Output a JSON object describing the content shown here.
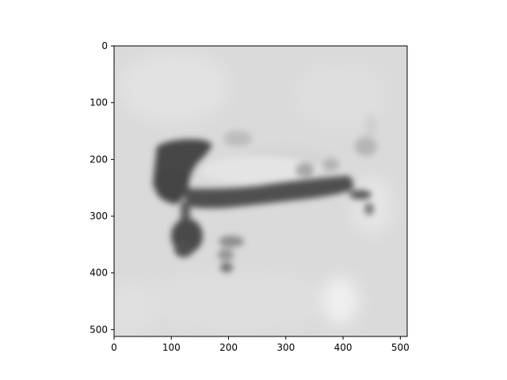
{
  "figure": {
    "background": "#ffffff",
    "colormap": "gray"
  },
  "axes": {
    "x_ticks": [
      0,
      100,
      200,
      300,
      400,
      500
    ],
    "y_ticks": [
      0,
      100,
      200,
      300,
      400,
      500
    ],
    "x_range": [
      0,
      512
    ],
    "y_range": [
      512,
      0
    ],
    "x_tick_labels": [
      "0",
      "100",
      "200",
      "300",
      "400",
      "500"
    ],
    "y_tick_labels": [
      "0",
      "100",
      "200",
      "300",
      "400",
      "500"
    ]
  },
  "image": {
    "description_icon": "grayscale-blurred-image",
    "background_gray": "#dcdcdc",
    "dark_gray": "#4a4a4a"
  }
}
